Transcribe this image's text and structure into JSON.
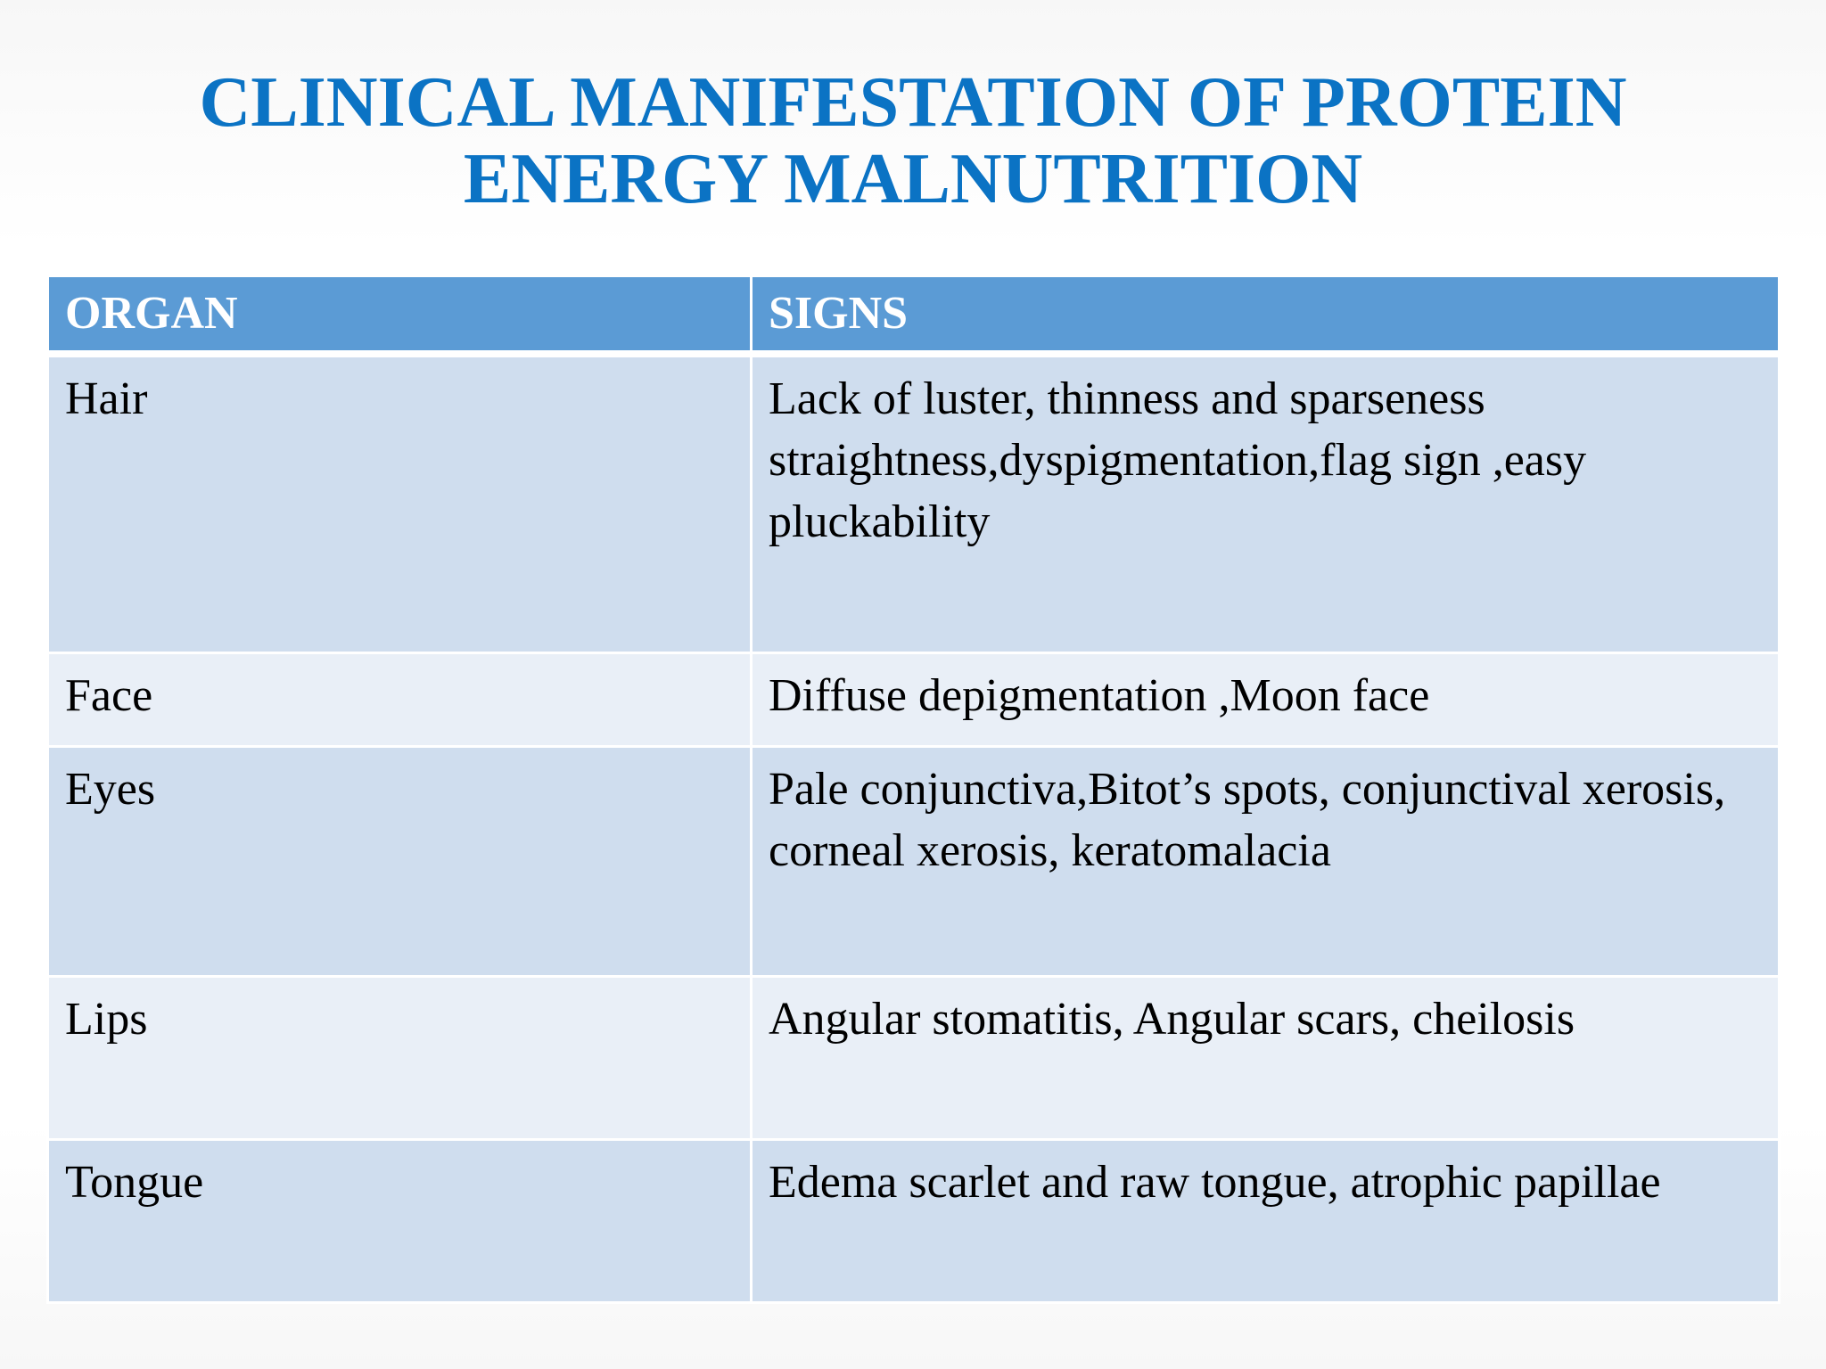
{
  "slide": {
    "title_line1": "CLINICAL MANIFESTATION OF PROTEIN",
    "title_line2": "ENERGY MALNUTRITION",
    "colors": {
      "title": "#0b73c4",
      "header_bg": "#5b9bd5",
      "row_dark": "#cfddee",
      "row_light": "#e9eff7"
    }
  },
  "table": {
    "headers": [
      "ORGAN",
      "SIGNS"
    ],
    "rows": [
      {
        "organ": "Hair",
        "signs": "Lack of luster, thinness and sparseness straightness,dyspigmentation,flag sign ,easy pluckability"
      },
      {
        "organ": "Face",
        "signs": "Diffuse depigmentation ,Moon face"
      },
      {
        "organ": "Eyes",
        "signs": "Pale conjunctiva,Bitot’s spots, conjunctival xerosis, corneal xerosis, keratomalacia"
      },
      {
        "organ": "Lips",
        "signs": "Angular stomatitis, Angular scars, cheilosis"
      },
      {
        "organ": "Tongue",
        "signs": "Edema scarlet and raw tongue, atrophic papillae"
      }
    ]
  }
}
